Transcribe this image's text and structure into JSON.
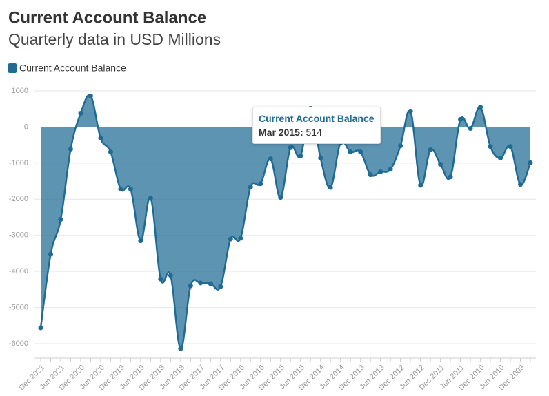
{
  "chart_data": {
    "type": "area",
    "title": "Current Account Balance",
    "subtitle": "Quarterly data in USD Millions",
    "categories": [
      "Dec 2021",
      null,
      "Jun 2021",
      null,
      "Dec 2020",
      null,
      "Jun 2020",
      null,
      "Dec 2019",
      null,
      "Jun 2019",
      null,
      "Dec 2018",
      null,
      "Jun 2018",
      null,
      "Dec 2017",
      null,
      "Jun 2017",
      null,
      "Dec 2016",
      null,
      "Jun 2016",
      null,
      "Dec 2015",
      null,
      "Jun 2015",
      null,
      "Dec 2014",
      null,
      "Jun 2014",
      null,
      "Dec 2013",
      null,
      "Jun 2013",
      null,
      "Dec 2012",
      null,
      "Jun 2012",
      null,
      "Dec 2011",
      null,
      "Jun 2011",
      null,
      "Dec 2010",
      null,
      "Jun 2010",
      null,
      "Dec 2009",
      null
    ],
    "series": [
      {
        "name": "Current Account Balance",
        "color": "#1f6b94",
        "values": [
          -5560,
          -3520,
          -2560,
          -610,
          380,
          860,
          -310,
          -690,
          -1720,
          -1720,
          -3150,
          -1970,
          -4210,
          -4110,
          -6140,
          -4400,
          -4320,
          -4340,
          -4420,
          -3100,
          -3080,
          -1660,
          -1570,
          -880,
          -1950,
          -570,
          -800,
          514,
          -860,
          -1670,
          -440,
          -690,
          -690,
          -1320,
          -1240,
          -1170,
          -520,
          440,
          -1610,
          -630,
          -1030,
          -1380,
          210,
          -40,
          550,
          -540,
          -860,
          -540,
          -1590,
          -990
        ]
      }
    ],
    "ylim": [
      -6400,
      1000
    ],
    "yticks": [
      -6000,
      -5000,
      -4000,
      -3000,
      -2000,
      -1000,
      0,
      1000
    ],
    "grid": true,
    "tooltip": {
      "x": "Mar 2015"
    }
  }
}
